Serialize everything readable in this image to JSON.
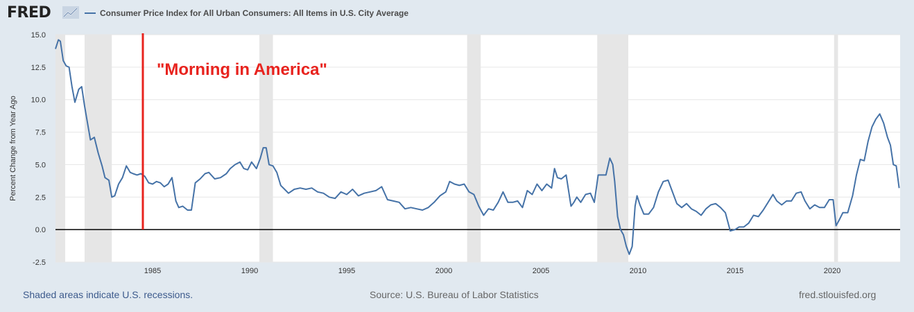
{
  "header": {
    "logo_text": "FRED",
    "logo_icon": "chart-line-icon",
    "legend_label": "Consumer Price Index for All Urban Consumers: All Items in U.S. City Average",
    "series_color": "#4572a7"
  },
  "footer": {
    "recessions_note": "Shaded areas indicate U.S. recessions.",
    "source": "Source: U.S. Bureau of Labor Statistics",
    "site": "fred.stlouisfed.org"
  },
  "chart_data": {
    "type": "line",
    "title": "Consumer Price Index for All Urban Consumers: All Items in U.S. City Average",
    "ylabel": "Percent Change from Year Ago",
    "xlabel": "",
    "xlim": [
      1980.0,
      2023.5
    ],
    "ylim": [
      -2.5,
      15.0
    ],
    "y_ticks": [
      -2.5,
      0.0,
      2.5,
      5.0,
      7.5,
      10.0,
      12.5,
      15.0
    ],
    "y_tick_labels": [
      "-2.5",
      "0.0",
      "2.5",
      "5.0",
      "7.5",
      "10.0",
      "12.5",
      "15.0"
    ],
    "x_ticks": [
      1985,
      1990,
      1995,
      2000,
      2005,
      2010,
      2015,
      2020
    ],
    "x_tick_labels": [
      "1985",
      "1990",
      "1995",
      "2000",
      "2005",
      "2010",
      "2015",
      "2020"
    ],
    "grid": "horizontal",
    "recessions": [
      [
        1980.0,
        1980.5
      ],
      [
        1981.5,
        1982.9
      ],
      [
        1990.5,
        1991.2
      ],
      [
        2001.2,
        2001.9
      ],
      [
        2007.9,
        2009.5
      ],
      [
        2020.1,
        2020.3
      ]
    ],
    "annotations": [
      {
        "text": "\"Morning in America\"",
        "x": 1984.5,
        "color": "#e8231e"
      }
    ],
    "series": [
      {
        "name": "Consumer Price Index for All Urban Consumers: All Items in U.S. City Average",
        "x": [
          1980.0,
          1980.15,
          1980.25,
          1980.4,
          1980.55,
          1980.7,
          1980.85,
          1981.0,
          1981.2,
          1981.35,
          1981.5,
          1981.65,
          1981.8,
          1982.0,
          1982.2,
          1982.4,
          1982.55,
          1982.75,
          1982.9,
          1983.05,
          1983.25,
          1983.45,
          1983.65,
          1983.85,
          1984.0,
          1984.2,
          1984.4,
          1984.6,
          1984.8,
          1985.0,
          1985.2,
          1985.4,
          1985.6,
          1985.8,
          1986.0,
          1986.2,
          1986.35,
          1986.55,
          1986.8,
          1987.0,
          1987.2,
          1987.45,
          1987.7,
          1987.9,
          1988.2,
          1988.5,
          1988.8,
          1989.0,
          1989.25,
          1989.5,
          1989.7,
          1989.9,
          1990.1,
          1990.35,
          1990.55,
          1990.7,
          1990.85,
          1991.0,
          1991.2,
          1991.4,
          1991.6,
          1991.8,
          1992.0,
          1992.3,
          1992.6,
          1992.9,
          1993.2,
          1993.5,
          1993.8,
          1994.1,
          1994.4,
          1994.7,
          1995.0,
          1995.3,
          1995.6,
          1995.9,
          1996.2,
          1996.5,
          1996.8,
          1997.1,
          1997.4,
          1997.7,
          1998.0,
          1998.3,
          1998.6,
          1998.9,
          1999.2,
          1999.5,
          1999.8,
          2000.1,
          2000.3,
          2000.55,
          2000.8,
          2001.05,
          2001.3,
          2001.55,
          2001.8,
          2002.05,
          2002.3,
          2002.55,
          2002.8,
          2003.05,
          2003.3,
          2003.55,
          2003.8,
          2004.05,
          2004.3,
          2004.55,
          2004.8,
          2005.05,
          2005.3,
          2005.55,
          2005.7,
          2005.85,
          2006.05,
          2006.3,
          2006.55,
          2006.7,
          2006.85,
          2007.05,
          2007.3,
          2007.55,
          2007.75,
          2007.95,
          2008.15,
          2008.35,
          2008.55,
          2008.7,
          2008.8,
          2008.95,
          2009.1,
          2009.25,
          2009.4,
          2009.55,
          2009.7,
          2009.85,
          2009.95,
          2010.1,
          2010.3,
          2010.55,
          2010.8,
          2011.05,
          2011.3,
          2011.55,
          2011.75,
          2012.0,
          2012.25,
          2012.5,
          2012.75,
          2013.0,
          2013.25,
          2013.5,
          2013.75,
          2014.0,
          2014.25,
          2014.5,
          2014.75,
          2015.0,
          2015.2,
          2015.45,
          2015.7,
          2015.95,
          2016.2,
          2016.45,
          2016.7,
          2016.95,
          2017.15,
          2017.4,
          2017.65,
          2017.9,
          2018.15,
          2018.4,
          2018.6,
          2018.85,
          2019.1,
          2019.35,
          2019.6,
          2019.85,
          2020.05,
          2020.2,
          2020.35,
          2020.55,
          2020.8,
          2021.05,
          2021.25,
          2021.45,
          2021.65,
          2021.85,
          2022.05,
          2022.25,
          2022.45,
          2022.65,
          2022.85,
          2023.0,
          2023.15,
          2023.3,
          2023.45
        ],
        "values": [
          13.9,
          14.6,
          14.5,
          13.0,
          12.6,
          12.5,
          11.0,
          9.8,
          10.8,
          11.0,
          9.5,
          8.2,
          6.9,
          7.1,
          5.9,
          4.9,
          4.0,
          3.8,
          2.5,
          2.6,
          3.5,
          4.0,
          4.9,
          4.4,
          4.3,
          4.2,
          4.3,
          4.1,
          3.6,
          3.5,
          3.7,
          3.6,
          3.3,
          3.5,
          4.0,
          2.2,
          1.7,
          1.8,
          1.5,
          1.5,
          3.6,
          3.9,
          4.3,
          4.4,
          3.9,
          4.0,
          4.3,
          4.7,
          5.0,
          5.2,
          4.7,
          4.6,
          5.2,
          4.7,
          5.5,
          6.3,
          6.3,
          5.0,
          4.9,
          4.4,
          3.4,
          3.1,
          2.8,
          3.1,
          3.2,
          3.1,
          3.2,
          2.9,
          2.8,
          2.5,
          2.4,
          2.9,
          2.7,
          3.1,
          2.6,
          2.8,
          2.9,
          3.0,
          3.3,
          2.3,
          2.2,
          2.1,
          1.6,
          1.7,
          1.6,
          1.5,
          1.7,
          2.1,
          2.6,
          2.9,
          3.7,
          3.5,
          3.4,
          3.5,
          2.9,
          2.7,
          1.8,
          1.1,
          1.6,
          1.5,
          2.1,
          2.9,
          2.1,
          2.1,
          2.2,
          1.7,
          3.0,
          2.7,
          3.5,
          3.0,
          3.5,
          3.2,
          4.7,
          4.0,
          3.9,
          4.2,
          1.8,
          2.1,
          2.5,
          2.1,
          2.7,
          2.8,
          2.1,
          4.2,
          4.2,
          4.2,
          5.5,
          5.0,
          3.7,
          1.0,
          0.0,
          -0.4,
          -1.3,
          -1.9,
          -1.3,
          1.8,
          2.6,
          1.9,
          1.2,
          1.2,
          1.7,
          2.9,
          3.7,
          3.8,
          3.0,
          2.0,
          1.7,
          2.0,
          1.6,
          1.4,
          1.1,
          1.6,
          1.9,
          2.0,
          1.7,
          1.3,
          -0.1,
          0.0,
          0.2,
          0.2,
          0.5,
          1.1,
          1.0,
          1.5,
          2.1,
          2.7,
          2.2,
          1.9,
          2.2,
          2.2,
          2.8,
          2.9,
          2.2,
          1.6,
          1.9,
          1.7,
          1.7,
          2.3,
          2.3,
          0.3,
          0.7,
          1.3,
          1.3,
          2.6,
          4.2,
          5.4,
          5.3,
          6.8,
          7.9,
          8.5,
          8.9,
          8.2,
          7.1,
          6.5,
          5.0,
          4.9,
          3.2
        ]
      }
    ]
  }
}
